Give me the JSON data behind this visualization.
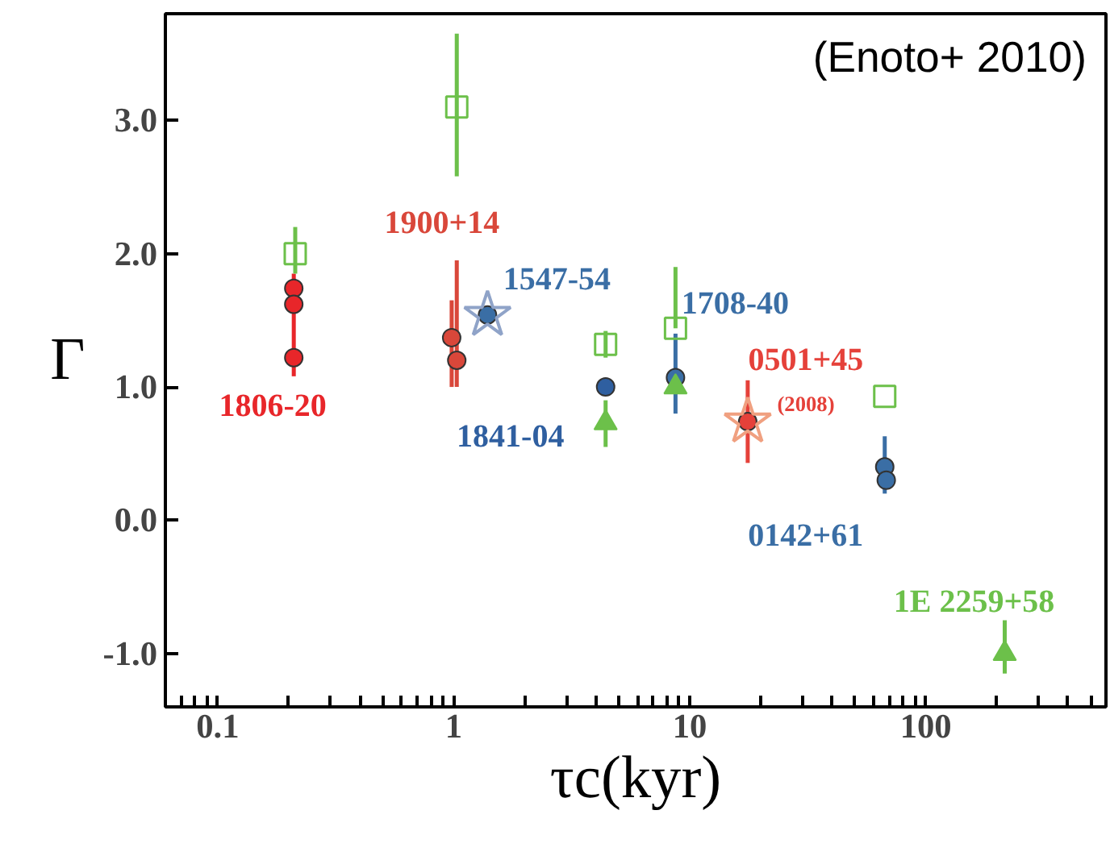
{
  "chart_data": {
    "type": "scatter",
    "xlabel": "τc(kyr)",
    "ylabel": "Γ",
    "annotations": [
      "(Enoto+ 2010)",
      "(2008)"
    ],
    "log": "x",
    "grid": false,
    "xlim": [
      0.06,
      580
    ],
    "ylim": [
      -1.4,
      3.8
    ],
    "xticks": [
      {
        "value": 0.07,
        "label": null
      },
      {
        "value": 0.08,
        "label": null
      },
      {
        "value": 0.09,
        "label": null
      },
      0.1,
      {
        "value": 0.2,
        "label": null
      },
      {
        "value": 0.3,
        "label": null
      },
      {
        "value": 0.4,
        "label": null
      },
      {
        "value": 0.5,
        "label": null
      },
      {
        "value": 0.6,
        "label": null
      },
      {
        "value": 0.7,
        "label": null
      },
      {
        "value": 0.8,
        "label": null
      },
      {
        "value": 0.9,
        "label": null
      },
      1,
      {
        "value": 2,
        "label": null
      },
      {
        "value": 3,
        "label": null
      },
      {
        "value": 4,
        "label": null
      },
      {
        "value": 5,
        "label": null
      },
      {
        "value": 6,
        "label": null
      },
      {
        "value": 7,
        "label": null
      },
      {
        "value": 8,
        "label": null
      },
      {
        "value": 9,
        "label": null
      },
      10,
      {
        "value": 20,
        "label": null
      },
      {
        "value": 30,
        "label": null
      },
      {
        "value": 40,
        "label": null
      },
      {
        "value": 50,
        "label": null
      },
      {
        "value": 60,
        "label": null
      },
      {
        "value": 70,
        "label": null
      },
      {
        "value": 80,
        "label": null
      },
      {
        "value": 90,
        "label": null
      },
      100,
      {
        "value": 200,
        "label": null
      },
      {
        "value": 300,
        "label": null
      },
      {
        "value": 400,
        "label": null
      },
      {
        "value": 500,
        "label": null
      }
    ],
    "yticks": [
      {
        "value": -1,
        "label": "-1.0"
      },
      {
        "value": 0,
        "label": "0.0"
      },
      {
        "value": 1,
        "label": "1.0"
      },
      {
        "value": 2,
        "label": "2.0"
      },
      {
        "value": 3,
        "label": "3.0"
      }
    ],
    "series": [
      {
        "name": "1806-20",
        "color": "#e8262a",
        "marker": "circle",
        "x": [
          0.21,
          0.21,
          0.21
        ],
        "values": [
          1.74,
          1.62,
          1.22
        ],
        "errors": [
          null,
          [
            1.08,
            1.85
          ],
          null
        ]
      },
      {
        "name": "1900+14",
        "color": "#d9473a",
        "marker": "circle",
        "x": [
          0.98,
          1.03
        ],
        "values": [
          1.37,
          1.2
        ],
        "errors": [
          [
            1.0,
            1.65
          ],
          [
            1.0,
            1.95
          ]
        ]
      },
      {
        "name": "0501+45",
        "color": "#e5413a",
        "marker": "circle",
        "x": [
          17.6
        ],
        "values": [
          0.74
        ],
        "errors": [
          [
            0.43,
            1.05
          ]
        ]
      },
      {
        "name": "1547-54",
        "color": "#3a6ea5",
        "marker": "circle",
        "x": [
          1.39
        ],
        "values": [
          1.54
        ],
        "errors": [
          null
        ]
      },
      {
        "name": "1841-04",
        "color": "#2f5fa0",
        "marker": "circle",
        "x": [
          4.4
        ],
        "values": [
          1.0
        ],
        "errors": [
          null
        ]
      },
      {
        "name": "1708-40",
        "color": "#3a6ea5",
        "marker": "circle",
        "x": [
          8.7
        ],
        "values": [
          1.07
        ],
        "errors": [
          [
            0.8,
            1.4
          ]
        ]
      },
      {
        "name": "0142+61",
        "color": "#3a6ea5",
        "marker": "circle",
        "x": [
          67,
          68
        ],
        "values": [
          0.4,
          0.3
        ],
        "errors": [
          [
            0.2,
            0.63
          ],
          null
        ]
      },
      {
        "name": "1E 2259+58",
        "color": "#6cc04a",
        "marker": "triangle",
        "x": [
          216
        ],
        "values": [
          -1.0
        ],
        "errors": [
          [
            -1.15,
            -0.75
          ]
        ]
      },
      {
        "color": "#6cc04a",
        "marker": "triangle",
        "x": [
          4.4,
          8.7
        ],
        "values": [
          0.73,
          1.0
        ],
        "errors": [
          [
            0.55,
            0.9
          ],
          null
        ]
      },
      {
        "color": "#6cc04a",
        "marker": "square",
        "x": [
          0.213,
          1.03,
          4.4,
          8.7,
          67
        ],
        "values": [
          2.0,
          3.1,
          1.32,
          1.44,
          0.93
        ],
        "errors": [
          [
            1.85,
            2.2
          ],
          [
            2.58,
            3.65
          ],
          [
            1.22,
            1.42
          ],
          [
            1.44,
            1.9
          ],
          null
        ]
      },
      {
        "color": "#8fa3c8",
        "marker": "star",
        "x": [
          1.39
        ],
        "values": [
          1.54
        ]
      },
      {
        "color": "#f0a080",
        "marker": "star",
        "x": [
          17.6
        ],
        "values": [
          0.74
        ]
      }
    ]
  }
}
